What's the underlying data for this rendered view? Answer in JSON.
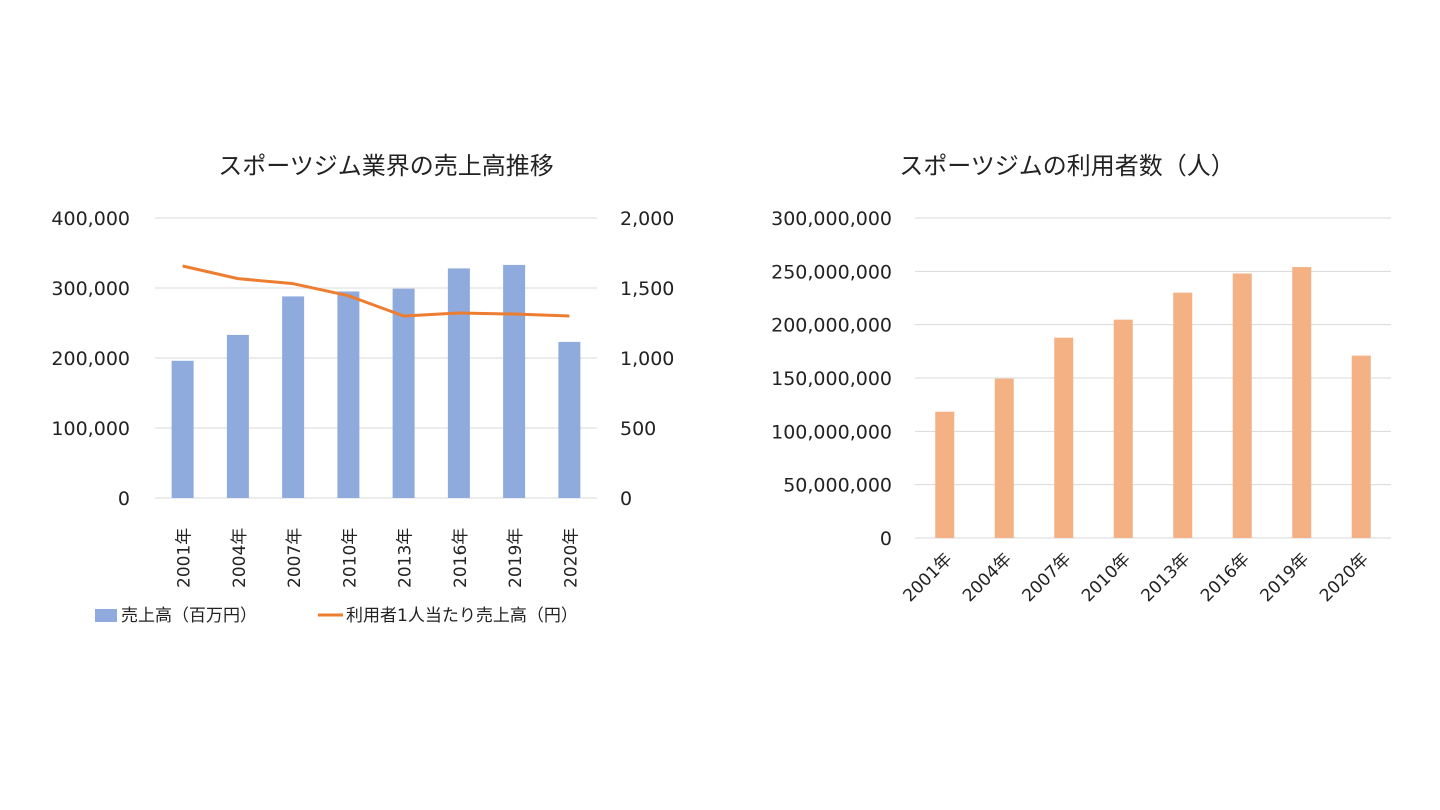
{
  "chart_data": [
    {
      "type": "bar+line",
      "title": "スポーツジム業界の売上高推移",
      "categories": [
        "2001年",
        "2004年",
        "2007年",
        "2010年",
        "2013年",
        "2016年",
        "2019年",
        "2020年"
      ],
      "series": [
        {
          "name": "売上高（百万円）",
          "type": "bar",
          "axis": "left",
          "color": "#8faadc",
          "values": [
            196000,
            233000,
            288000,
            295000,
            299000,
            328000,
            333000,
            223000
          ]
        },
        {
          "name": "利用者1人当たり売上高（円）",
          "type": "line",
          "axis": "right",
          "color": "#ed7d31",
          "values": [
            1657,
            1567,
            1531,
            1445,
            1300,
            1321,
            1314,
            1300
          ]
        }
      ],
      "ylim": [
        0,
        400000
      ],
      "y_ticks": [
        "0",
        "100,000",
        "200,000",
        "300,000",
        "400,000"
      ],
      "y2lim": [
        0,
        2000
      ],
      "y2_ticks": [
        "0",
        "500",
        "1,000",
        "1,500",
        "2,000"
      ],
      "grid": true,
      "legend": "bottom"
    },
    {
      "type": "bar",
      "title": "スポーツジムの利用者数（人）",
      "categories": [
        "2001年",
        "2004年",
        "2007年",
        "2010年",
        "2013年",
        "2016年",
        "2019年",
        "2020年"
      ],
      "values": [
        118400000,
        149400000,
        187800000,
        204700000,
        230000000,
        248000000,
        254000000,
        171000000
      ],
      "color": "#f4b183",
      "ylim": [
        0,
        300000000
      ],
      "y_ticks": [
        "0",
        "50,000,000",
        "100,000,000",
        "150,000,000",
        "200,000,000",
        "250,000,000",
        "300,000,000"
      ],
      "grid": true,
      "legend": "none"
    }
  ]
}
